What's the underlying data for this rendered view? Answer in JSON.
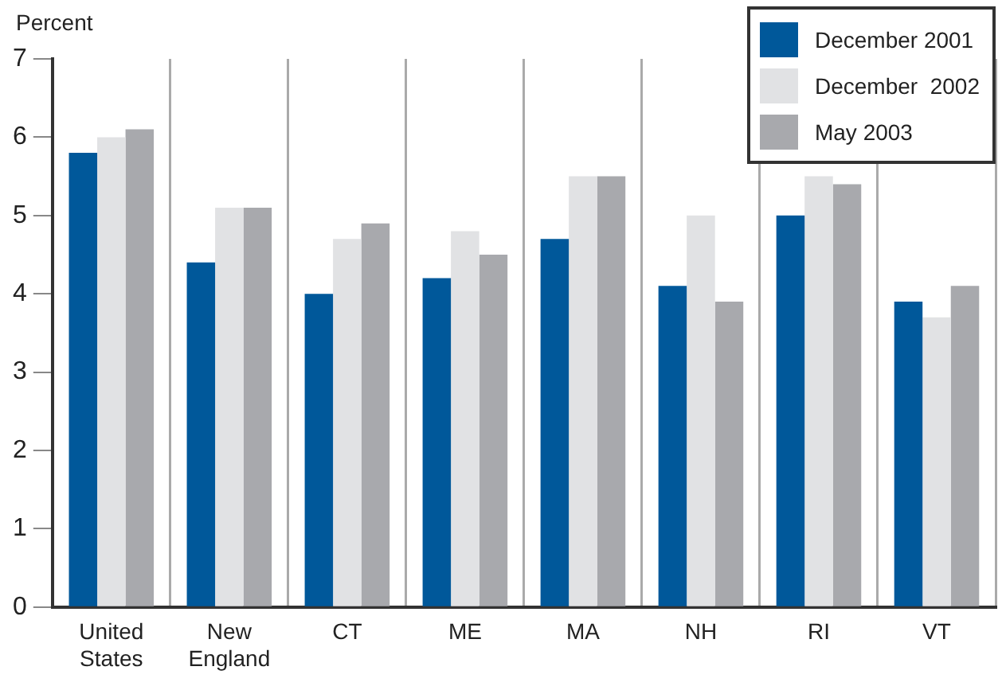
{
  "chart_data": {
    "type": "bar",
    "ylabel": "Percent",
    "categories": [
      "United States",
      "New England",
      "CT",
      "ME",
      "MA",
      "NH",
      "RI",
      "VT"
    ],
    "series": [
      {
        "name": "December 2001",
        "color": "#00589a",
        "values": [
          5.8,
          4.4,
          4.0,
          4.2,
          4.7,
          4.1,
          5.0,
          3.9
        ]
      },
      {
        "name": "December  2002",
        "color": "#e1e2e4",
        "values": [
          6.0,
          5.1,
          4.7,
          4.8,
          5.5,
          5.0,
          5.5,
          3.7
        ]
      },
      {
        "name": "May 2003",
        "color": "#a8a9ad",
        "values": [
          6.1,
          5.1,
          4.9,
          4.5,
          5.5,
          3.9,
          5.4,
          4.1
        ]
      }
    ],
    "ylim": [
      0,
      7
    ],
    "yticks": [
      0,
      1,
      2,
      3,
      4,
      5,
      6,
      7
    ],
    "grid": "x",
    "legend": "top right"
  }
}
